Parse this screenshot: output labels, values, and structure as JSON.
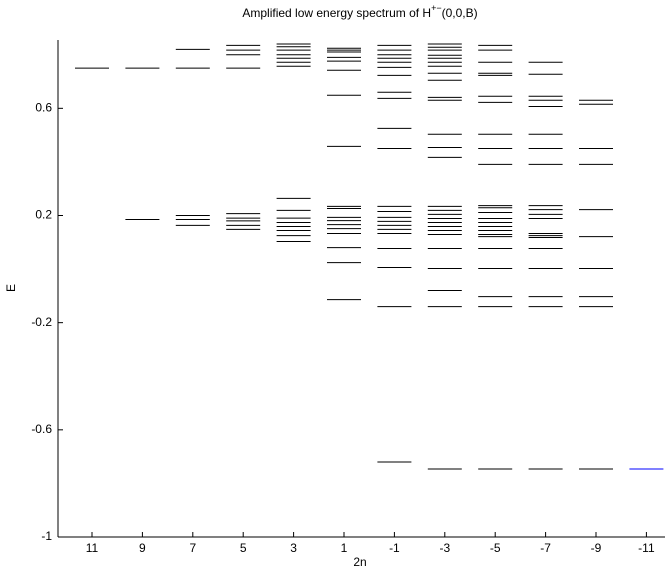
{
  "chart_data": {
    "type": "levels",
    "title": "Amplified low energy spectrum of H",
    "title_superscript": "+−",
    "title_suffix": "(0,0,B)",
    "xlabel": "2n",
    "ylabel": "E",
    "categories": [
      "11",
      "9",
      "7",
      "5",
      "3",
      "1",
      "-1",
      "-3",
      "-5",
      "-7",
      "-9",
      "-11"
    ],
    "colors": [
      "#000000",
      "#000000",
      "#000000",
      "#000000",
      "#000000",
      "#000000",
      "#000000",
      "#000000",
      "#000000",
      "#000000",
      "#000000",
      "#0000ff"
    ],
    "levels": [
      [
        0.75
      ],
      [
        0.75,
        0.185
      ],
      [
        0.82,
        0.75,
        0.2,
        0.185,
        0.163
      ],
      [
        0.835,
        0.817,
        0.8,
        0.75,
        0.207,
        0.19,
        0.18,
        0.163,
        0.148
      ],
      [
        0.84,
        0.83,
        0.817,
        0.8,
        0.787,
        0.772,
        0.757,
        0.264,
        0.219,
        0.19,
        0.174,
        0.159,
        0.144,
        0.125,
        0.103
      ],
      [
        0.824,
        0.817,
        0.81,
        0.79,
        0.776,
        0.742,
        0.649,
        0.458,
        0.234,
        0.226,
        0.193,
        0.181,
        0.166,
        0.151,
        0.133,
        0.08,
        0.024,
        -0.114
      ],
      [
        0.835,
        0.817,
        0.8,
        0.787,
        0.772,
        0.753,
        0.723,
        0.66,
        0.637,
        0.525,
        0.45,
        0.234,
        0.215,
        0.193,
        0.178,
        0.163,
        0.148,
        0.133,
        0.077,
        0.006,
        -0.14,
        -0.72
      ],
      [
        0.84,
        0.828,
        0.817,
        0.798,
        0.787,
        0.772,
        0.757,
        0.731,
        0.705,
        0.641,
        0.63,
        0.503,
        0.454,
        0.417,
        0.234,
        0.219,
        0.204,
        0.189,
        0.174,
        0.159,
        0.144,
        0.129,
        0.077,
        0.002,
        -0.08,
        -0.14,
        -0.746
      ],
      [
        0.835,
        0.817,
        0.772,
        0.731,
        0.723,
        0.645,
        0.622,
        0.503,
        0.45,
        0.391,
        0.237,
        0.229,
        0.211,
        0.189,
        0.174,
        0.159,
        0.144,
        0.129,
        0.121,
        0.077,
        0.002,
        -0.103,
        -0.14,
        -0.746
      ],
      [
        0.772,
        0.727,
        0.645,
        0.63,
        0.607,
        0.503,
        0.45,
        0.391,
        0.237,
        0.222,
        0.204,
        0.189,
        0.133,
        0.125,
        0.118,
        0.077,
        0.002,
        -0.103,
        -0.14,
        -0.746
      ],
      [
        0.63,
        0.615,
        0.45,
        0.391,
        0.222,
        0.121,
        0.002,
        -0.103,
        -0.14,
        -0.746
      ],
      [
        -0.746
      ]
    ],
    "ylim": [
      -1,
      0.855
    ],
    "yticks": [
      -1,
      -0.6,
      -0.2,
      0.2,
      0.6
    ]
  }
}
